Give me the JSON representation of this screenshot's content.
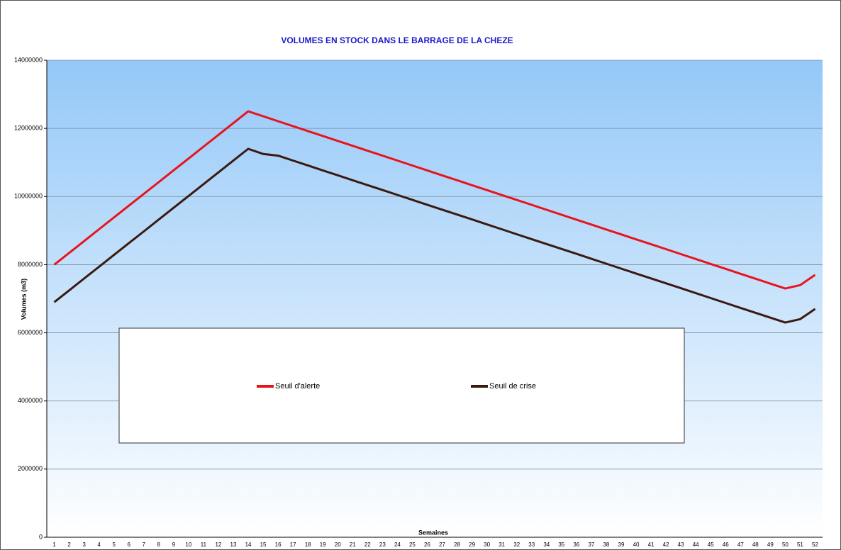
{
  "chart_data": {
    "type": "line",
    "title": "VOLUMES EN STOCK DANS LE BARRAGE DE LA CHEZE",
    "x_label": "Semaines",
    "y_label": "Volumes (m3)",
    "categories": [
      "1",
      "2",
      "3",
      "4",
      "5",
      "6",
      "7",
      "8",
      "9",
      "10",
      "11",
      "12",
      "13",
      "14",
      "15",
      "16",
      "17",
      "18",
      "19",
      "20",
      "21",
      "22",
      "23",
      "24",
      "25",
      "26",
      "27",
      "28",
      "29",
      "30",
      "31",
      "32",
      "33",
      "34",
      "35",
      "36",
      "37",
      "38",
      "39",
      "40",
      "41",
      "42",
      "43",
      "44",
      "45",
      "46",
      "47",
      "48",
      "49",
      "50",
      "51",
      "52"
    ],
    "series": [
      {
        "name": "Seuil d'alerte",
        "color": "#e8141c",
        "values": [
          8000000,
          8346000,
          8692000,
          9038000,
          9385000,
          9731000,
          10077000,
          10423000,
          10769000,
          11115000,
          11462000,
          11808000,
          12154000,
          12500000,
          12356000,
          12211000,
          12067000,
          11922000,
          11778000,
          11633000,
          11489000,
          11344000,
          11200000,
          11056000,
          10911000,
          10767000,
          10622000,
          10478000,
          10333000,
          10189000,
          10044000,
          9900000,
          9756000,
          9611000,
          9467000,
          9322000,
          9178000,
          9033000,
          8889000,
          8744000,
          8600000,
          8456000,
          8311000,
          8167000,
          8022000,
          7878000,
          7733000,
          7589000,
          7444000,
          7300000,
          7400000,
          7700000
        ]
      },
      {
        "name": "Seuil de crise",
        "color": "#3a1a10",
        "values": [
          6900000,
          7246000,
          7592000,
          7938000,
          8285000,
          8631000,
          8977000,
          9323000,
          9669000,
          10015000,
          10362000,
          10708000,
          11054000,
          11400000,
          11250000,
          11200000,
          11056000,
          10912000,
          10768000,
          10624000,
          10479000,
          10335000,
          10191000,
          10047000,
          9903000,
          9759000,
          9615000,
          9471000,
          9327000,
          9182000,
          9038000,
          8894000,
          8750000,
          8606000,
          8462000,
          8318000,
          8174000,
          8029000,
          7885000,
          7741000,
          7597000,
          7453000,
          7309000,
          7165000,
          7021000,
          6876000,
          6732000,
          6588000,
          6444000,
          6300000,
          6400000,
          6700000
        ]
      }
    ],
    "ylim": [
      0,
      14000000
    ],
    "yticks": [
      0,
      2000000,
      4000000,
      6000000,
      8000000,
      10000000,
      12000000,
      14000000
    ],
    "grid": true
  }
}
